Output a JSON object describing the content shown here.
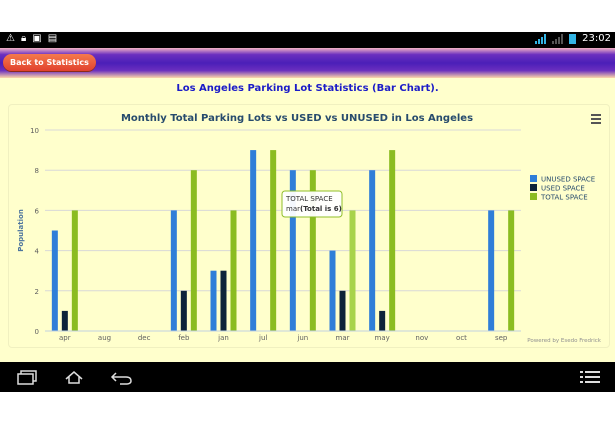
{
  "statusbar": {
    "time": "23:02"
  },
  "app": {
    "back_label": "Back to Statistics",
    "page_title": "Los Angeles Parking Lot Statistics (Bar Chart)."
  },
  "chart_data": {
    "type": "bar",
    "title": "Monthly Total Parking Lots vs USED vs UNUSED in Los Angeles",
    "xlabel": "",
    "ylabel": "Population",
    "categories": [
      "apr",
      "aug",
      "dec",
      "feb",
      "jan",
      "jul",
      "jun",
      "mar",
      "may",
      "nov",
      "oct",
      "sep"
    ],
    "ylim": [
      0,
      10
    ],
    "yticks": [
      0,
      2,
      4,
      6,
      8,
      10
    ],
    "grid": true,
    "legend_position": "right",
    "series": [
      {
        "name": "UNUSED SPACE",
        "color": "#2f7ed8",
        "values": [
          5,
          0,
          0,
          6,
          3,
          9,
          8,
          4,
          8,
          0,
          0,
          6
        ]
      },
      {
        "name": "USED SPACE",
        "color": "#0d233a",
        "values": [
          1,
          0,
          0,
          2,
          3,
          0,
          0,
          2,
          1,
          0,
          0,
          0
        ]
      },
      {
        "name": "TOTAL SPACE",
        "color": "#8bbc21",
        "values": [
          6,
          0,
          0,
          8,
          6,
          9,
          8,
          6,
          9,
          0,
          0,
          6
        ]
      }
    ],
    "tooltip": {
      "title": "TOTAL SPACE",
      "category": "mar",
      "text": "(Total is 6)"
    },
    "credits": "Powered by Esedo Fredrick"
  }
}
